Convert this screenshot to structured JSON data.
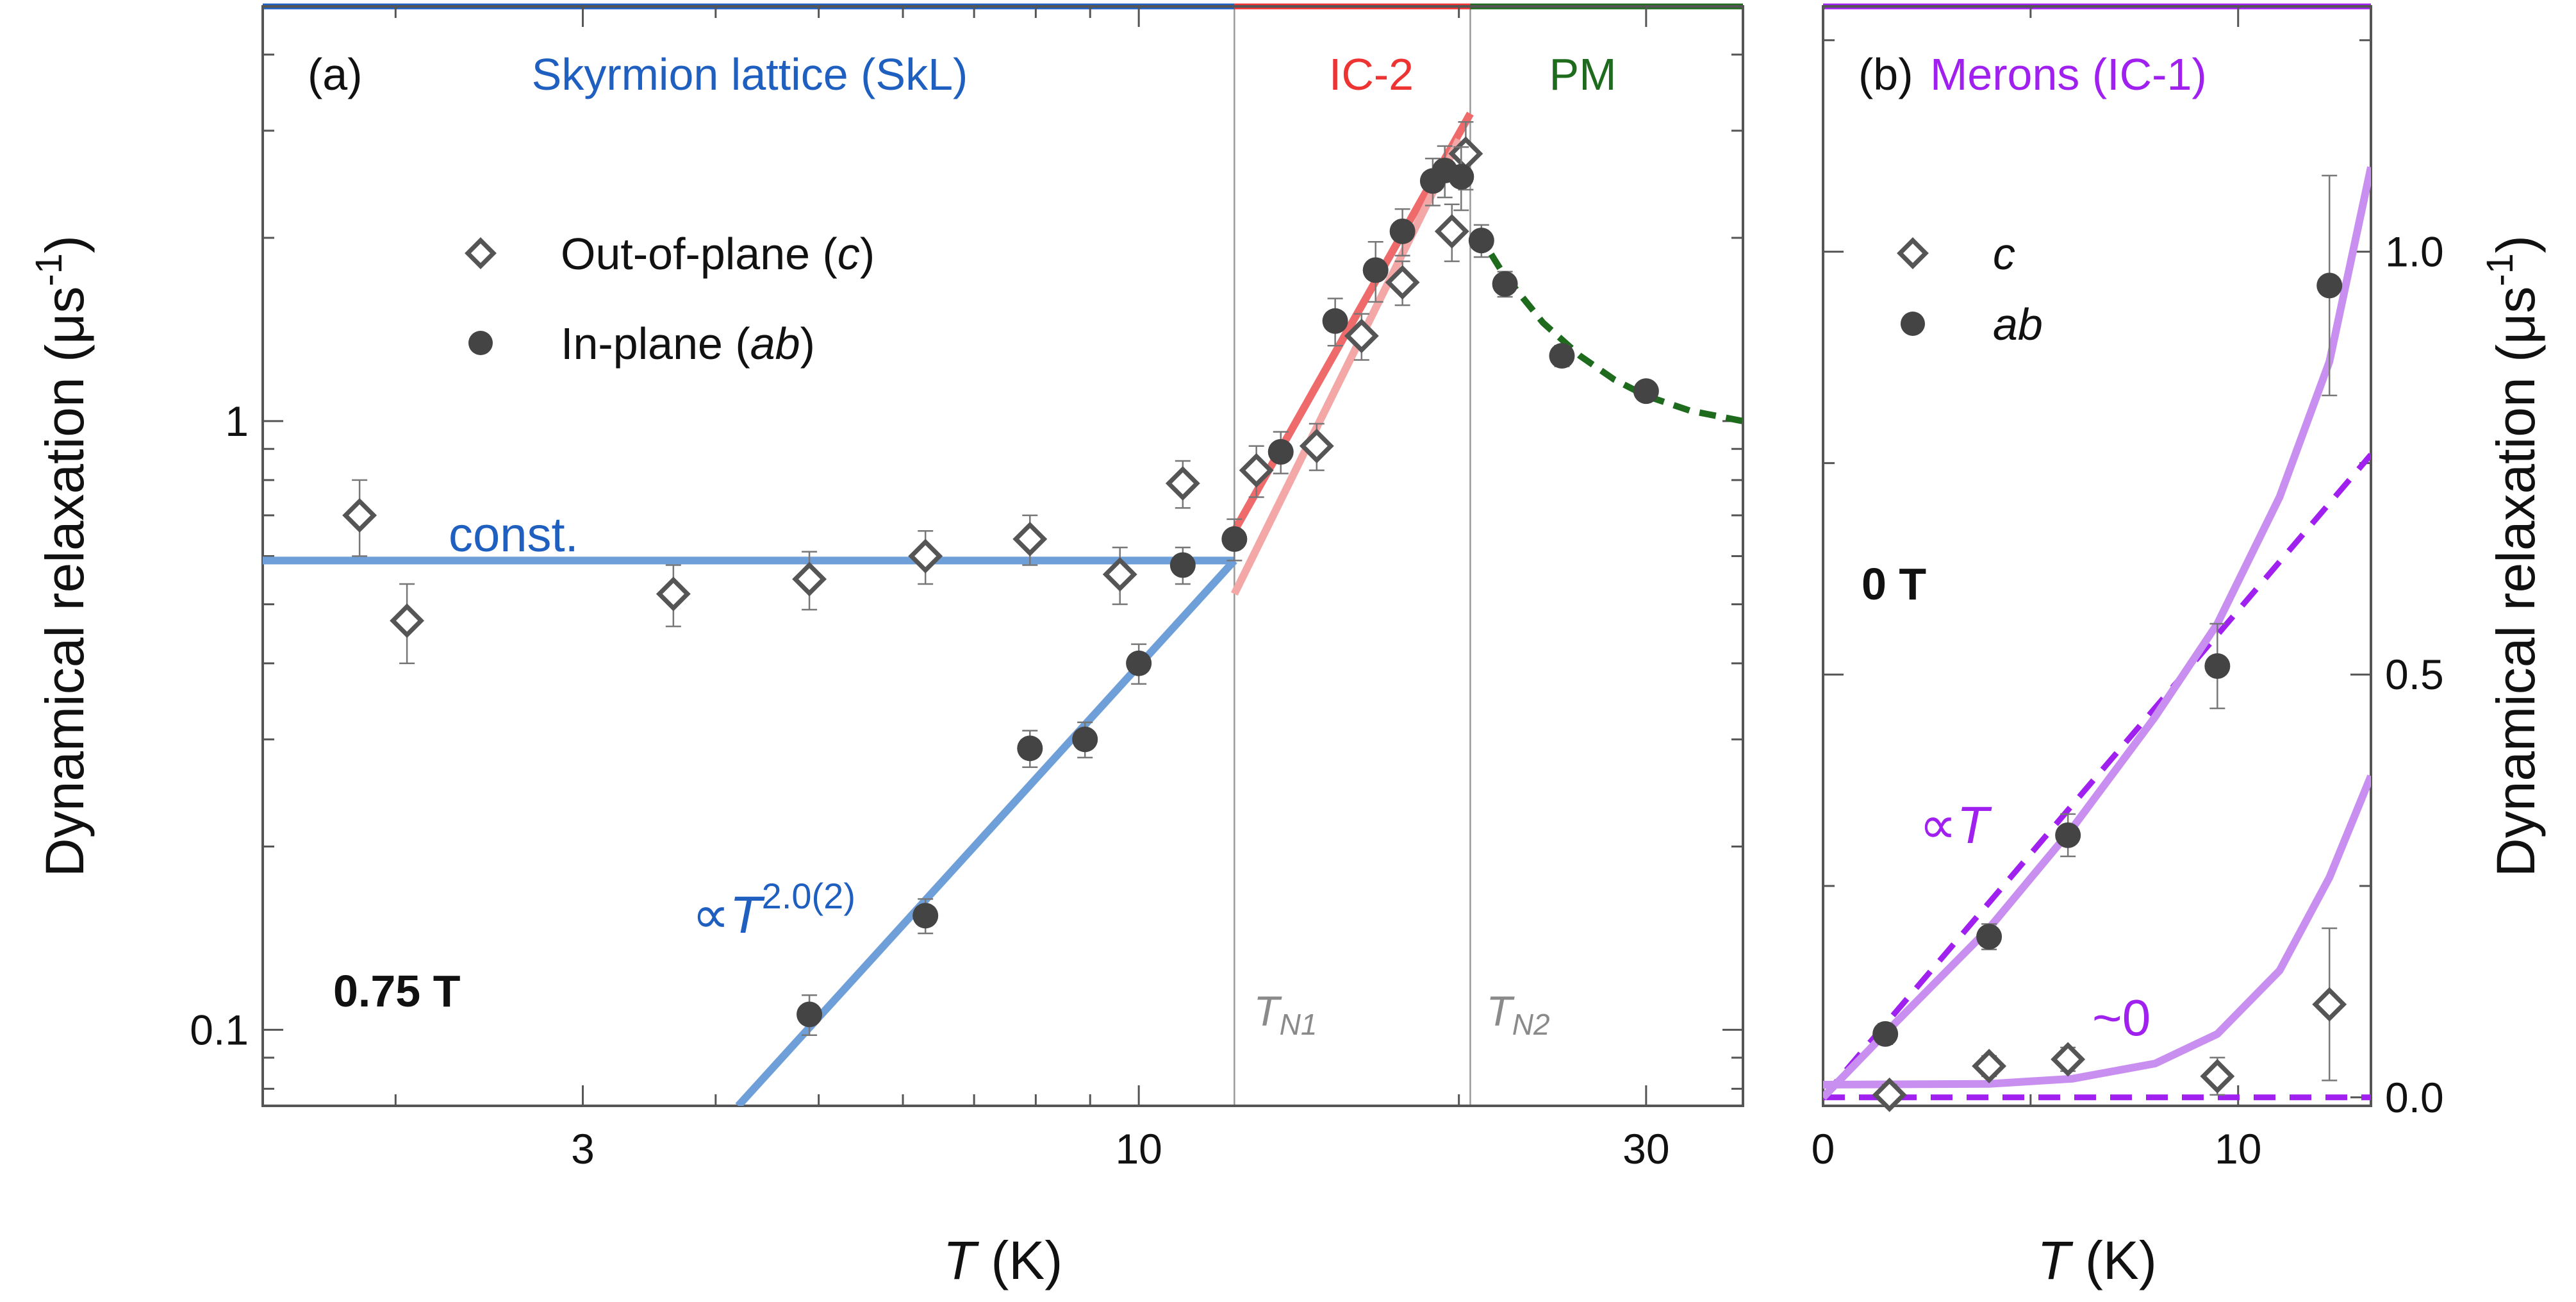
{
  "chart_data": [
    {
      "panel": "a",
      "type": "scatter",
      "panel_label": "(a)",
      "xlabel": "T (K)",
      "ylabel": "Dynamical relaxation (μs-1)",
      "x_scale": "log",
      "y_scale": "log",
      "xlim": [
        1.5,
        37
      ],
      "ylim": [
        0.075,
        4.8
      ],
      "xticks": [
        {
          "value": 3,
          "label": "3"
        },
        {
          "value": 10,
          "label": "10"
        },
        {
          "value": 30,
          "label": "30"
        }
      ],
      "yticks": [
        {
          "value": 0.1,
          "label": "0.1"
        },
        {
          "value": 1,
          "label": "1"
        }
      ],
      "field_label": "0.75 T",
      "phases": [
        {
          "label": "Skyrmion lattice (SkL)",
          "from": 1.5,
          "to": 12.3,
          "color": "#1f5fbf"
        },
        {
          "label": "IC-2",
          "from": 12.3,
          "to": 20.5,
          "color": "#ee3333"
        },
        {
          "label": "PM",
          "from": 20.5,
          "to": 37,
          "color": "#1e6b1e"
        }
      ],
      "transitions": [
        {
          "label": "TN1",
          "symbol": "T",
          "sub": "N1",
          "x": 12.3
        },
        {
          "label": "TN2",
          "symbol": "T",
          "sub": "N2",
          "x": 20.5
        }
      ],
      "legend": {
        "placement": "upper-left",
        "entries": [
          {
            "label": "Out-of-plane (c)",
            "text": "Out-of-plane (",
            "italic": "c",
            "close": ")",
            "marker": "open-diamond"
          },
          {
            "label": "In-plane (ab)",
            "text": "In-plane (",
            "italic": "ab",
            "close": ")",
            "marker": "filled-circle"
          }
        ]
      },
      "annotations": [
        {
          "text": "const.",
          "color": "#1f5fbf"
        },
        {
          "text": "∝T2.0(2)",
          "prefix": "∝",
          "symbol": "T",
          "superscript": "2.0(2)",
          "color": "#1f5fbf"
        }
      ],
      "series": [
        {
          "name": "Out-of-plane (c)",
          "marker": "open-diamond",
          "color": "#555555",
          "points": [
            {
              "x": 1.85,
              "y": 0.7,
              "err": 0.1
            },
            {
              "x": 2.05,
              "y": 0.47,
              "err": 0.07
            },
            {
              "x": 3.65,
              "y": 0.52,
              "err": 0.06
            },
            {
              "x": 4.9,
              "y": 0.55,
              "err": 0.06
            },
            {
              "x": 6.3,
              "y": 0.6,
              "err": 0.06
            },
            {
              "x": 7.9,
              "y": 0.64,
              "err": 0.06
            },
            {
              "x": 9.6,
              "y": 0.56,
              "err": 0.06
            },
            {
              "x": 11.0,
              "y": 0.79,
              "err": 0.07
            },
            {
              "x": 12.9,
              "y": 0.83,
              "err": 0.08
            },
            {
              "x": 14.7,
              "y": 0.91,
              "err": 0.08
            },
            {
              "x": 16.2,
              "y": 1.38,
              "err": 0.12
            },
            {
              "x": 17.7,
              "y": 1.69,
              "err": 0.14
            },
            {
              "x": 19.7,
              "y": 2.05,
              "err": 0.22
            },
            {
              "x": 20.3,
              "y": 2.75,
              "err": 0.35
            }
          ]
        },
        {
          "name": "In-plane (ab)",
          "marker": "filled-circle",
          "color": "#444444",
          "points": [
            {
              "x": 4.9,
              "y": 0.106,
              "err": 0.008
            },
            {
              "x": 6.3,
              "y": 0.154,
              "err": 0.01
            },
            {
              "x": 7.9,
              "y": 0.29,
              "err": 0.02
            },
            {
              "x": 8.9,
              "y": 0.3,
              "err": 0.02
            },
            {
              "x": 10.0,
              "y": 0.4,
              "err": 0.03
            },
            {
              "x": 11.0,
              "y": 0.58,
              "err": 0.04
            },
            {
              "x": 12.3,
              "y": 0.64,
              "err": 0.05
            },
            {
              "x": 13.6,
              "y": 0.89,
              "err": 0.07
            },
            {
              "x": 15.3,
              "y": 1.46,
              "err": 0.13
            },
            {
              "x": 16.7,
              "y": 1.77,
              "err": 0.2
            },
            {
              "x": 17.7,
              "y": 2.05,
              "err": 0.18
            },
            {
              "x": 18.9,
              "y": 2.48,
              "err": 0.22
            },
            {
              "x": 19.4,
              "y": 2.58,
              "err": 0.25
            },
            {
              "x": 20.1,
              "y": 2.52,
              "err": 0.3
            },
            {
              "x": 21.0,
              "y": 1.98,
              "err": 0.12
            },
            {
              "x": 22.1,
              "y": 1.68,
              "err": 0.08
            },
            {
              "x": 25.0,
              "y": 1.28,
              "err": 0.05
            },
            {
              "x": 30.0,
              "y": 1.12,
              "err": 0.04
            }
          ]
        }
      ],
      "fits": [
        {
          "kind": "const",
          "color": "#6f9fd8",
          "points": [
            [
              1.5,
              0.59
            ],
            [
              12.3,
              0.59
            ]
          ]
        },
        {
          "kind": "power",
          "color": "#6f9fd8",
          "points": [
            [
              4.2,
              0.075
            ],
            [
              12.3,
              0.59
            ]
          ]
        },
        {
          "kind": "linear-IC2-ab",
          "color": "#ef6b6b",
          "points": [
            [
              12.3,
              0.66
            ],
            [
              20.5,
              3.2
            ]
          ]
        },
        {
          "kind": "linear-IC2-c",
          "color": "#f4a7a7",
          "points": [
            [
              12.3,
              0.52
            ],
            [
              20.0,
              2.9
            ]
          ]
        },
        {
          "kind": "PM-decay",
          "color": "#1e6b1e",
          "dashed": true,
          "points": [
            [
              20.8,
              2.05
            ],
            [
              22.0,
              1.75
            ],
            [
              24.0,
              1.45
            ],
            [
              26.0,
              1.28
            ],
            [
              28.0,
              1.17
            ],
            [
              30.0,
              1.1
            ],
            [
              33.0,
              1.04
            ],
            [
              37.0,
              1.0
            ]
          ]
        }
      ]
    },
    {
      "panel": "b",
      "type": "scatter",
      "panel_label": "(b)",
      "xlabel": "T (K)",
      "ylabel": "Dynamical relaxation (μs-1)",
      "x_scale": "linear",
      "y_scale": "linear",
      "xlim": [
        0,
        13.2
      ],
      "ylim": [
        -0.01,
        1.29
      ],
      "xticks": [
        {
          "value": 0,
          "label": "0"
        },
        {
          "value": 10,
          "label": "10"
        }
      ],
      "yticks": [
        {
          "value": 0,
          "label": "0.0"
        },
        {
          "value": 0.5,
          "label": "0.5"
        },
        {
          "value": 1.0,
          "label": "1.0"
        }
      ],
      "field_label": "0 T",
      "phase": {
        "label": "Merons (IC-1)",
        "color": "#a020f0"
      },
      "legend": {
        "placement": "upper-left",
        "entries": [
          {
            "label": "c",
            "marker": "open-diamond"
          },
          {
            "label": "ab",
            "marker": "filled-circle"
          }
        ]
      },
      "annotations": [
        {
          "text": "∝T",
          "prefix": "∝",
          "symbol": "T",
          "color": "#a020f0"
        },
        {
          "text": "~0",
          "color": "#a020f0"
        }
      ],
      "series": [
        {
          "name": "c",
          "marker": "open-diamond",
          "color": "#555555",
          "points": [
            {
              "x": 1.6,
              "y": 0.003,
              "err": 0.012
            },
            {
              "x": 4.0,
              "y": 0.037,
              "err": 0.012
            },
            {
              "x": 5.9,
              "y": 0.045,
              "err": 0.014
            },
            {
              "x": 9.5,
              "y": 0.025,
              "err": 0.022
            },
            {
              "x": 12.2,
              "y": 0.11,
              "err": 0.09
            }
          ]
        },
        {
          "name": "ab",
          "marker": "filled-circle",
          "color": "#444444",
          "points": [
            {
              "x": 1.5,
              "y": 0.075,
              "err": 0.012
            },
            {
              "x": 4.0,
              "y": 0.19,
              "err": 0.015
            },
            {
              "x": 5.9,
              "y": 0.31,
              "err": 0.025
            },
            {
              "x": 9.5,
              "y": 0.51,
              "err": 0.05
            },
            {
              "x": 12.2,
              "y": 0.96,
              "err": 0.13
            }
          ]
        }
      ],
      "fits": [
        {
          "kind": "linear-ab",
          "color": "#a020f0",
          "dashed": true,
          "points": [
            [
              0,
              0
            ],
            [
              13.2,
              0.76
            ]
          ]
        },
        {
          "kind": "zero-c",
          "color": "#a020f0",
          "dashed": true,
          "points": [
            [
              0,
              0
            ],
            [
              13.2,
              0
            ]
          ]
        },
        {
          "kind": "curve-ab",
          "color": "#c98ff0",
          "points": [
            [
              0,
              0
            ],
            [
              1.5,
              0.076
            ],
            [
              4.0,
              0.2
            ],
            [
              6.0,
              0.318
            ],
            [
              8.0,
              0.45
            ],
            [
              9.5,
              0.56
            ],
            [
              11.0,
              0.71
            ],
            [
              12.2,
              0.87
            ],
            [
              13.2,
              1.1
            ]
          ]
        },
        {
          "kind": "curve-c",
          "color": "#c98ff0",
          "points": [
            [
              0,
              0.015
            ],
            [
              4.0,
              0.016
            ],
            [
              6.0,
              0.022
            ],
            [
              8.0,
              0.04
            ],
            [
              9.5,
              0.075
            ],
            [
              11.0,
              0.15
            ],
            [
              12.2,
              0.26
            ],
            [
              13.2,
              0.38
            ]
          ]
        }
      ]
    }
  ]
}
